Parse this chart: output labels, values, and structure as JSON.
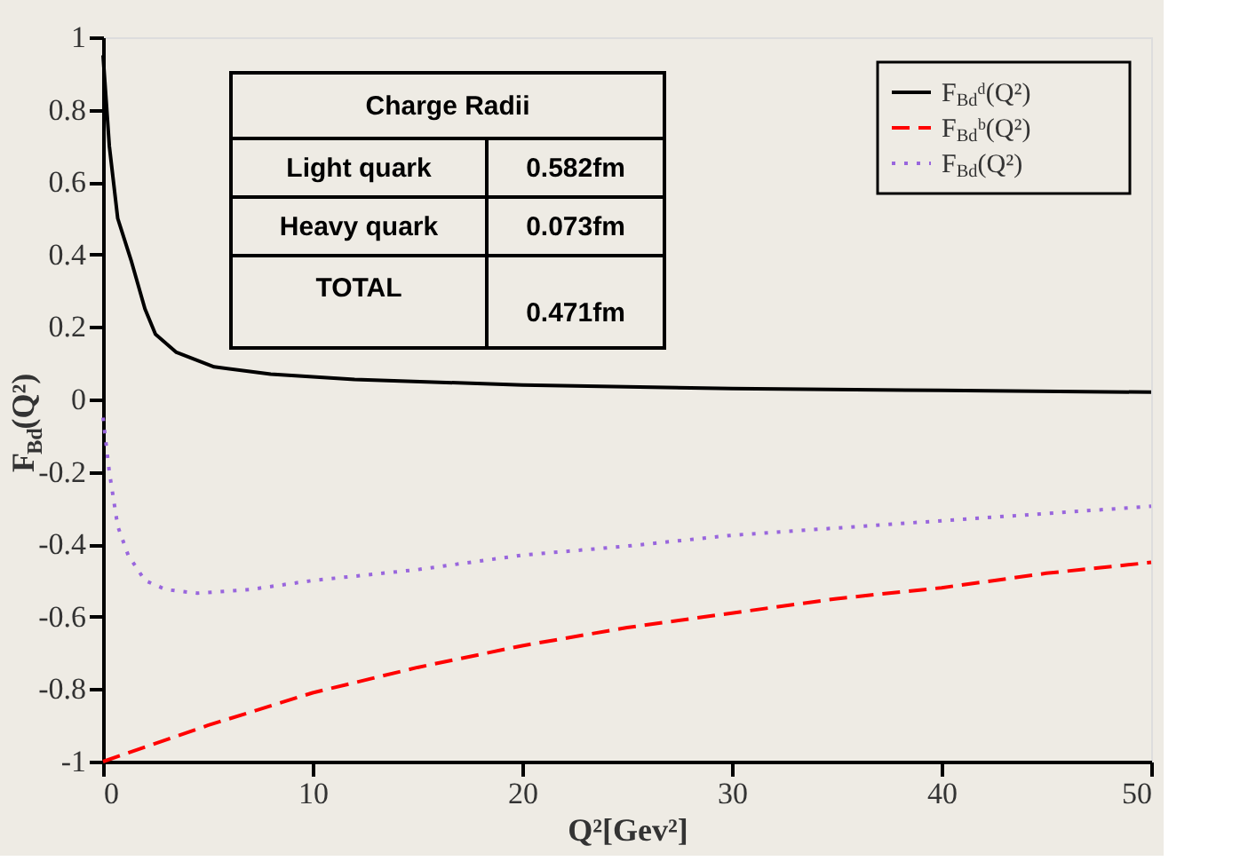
{
  "chart_data": {
    "type": "line",
    "xlabel": "Q²[Gev²]",
    "ylabel": "F$_{Bd}$(Q²)",
    "xlim": [
      0,
      50
    ],
    "ylim": [
      -1,
      1
    ],
    "xticks": [
      0,
      10,
      20,
      30,
      40,
      50
    ],
    "yticks": [
      -1,
      -0.8,
      -0.6,
      -0.4,
      -0.2,
      0,
      0.2,
      0.4,
      0.6,
      0.8,
      1
    ],
    "grid": false,
    "legend": "top right",
    "marker": "none",
    "series": [
      {
        "name": "F$_{Bd}$ᵈ(Q²)",
        "color": "#000000",
        "line_style": "solid",
        "x": [
          0,
          0.3,
          0.7,
          1.36,
          2,
          2.5,
          3.5,
          5.3,
          8,
          12,
          20,
          30,
          40,
          50
        ],
        "values": [
          0.95,
          0.7,
          0.5,
          0.38,
          0.25,
          0.18,
          0.13,
          0.09,
          0.07,
          0.055,
          0.04,
          0.03,
          0.025,
          0.02
        ]
      },
      {
        "name": "F$_{Bd}$ᵇ(Q²)",
        "color": "#ff0000",
        "line_style": "dashed",
        "x": [
          0,
          5,
          10,
          15,
          20,
          25,
          30,
          35,
          40,
          45,
          50
        ],
        "values": [
          -1,
          -0.9,
          -0.81,
          -0.74,
          -0.68,
          -0.63,
          -0.59,
          -0.55,
          -0.52,
          -0.48,
          -0.45
        ]
      },
      {
        "name": "F$_{Bd}$(Q²)",
        "color": "#9966dd",
        "line_style": "dotted",
        "x": [
          0,
          0.3,
          0.7,
          1.2,
          2,
          3,
          4.5,
          7,
          10,
          15,
          20,
          25,
          30,
          35,
          40,
          45,
          50
        ],
        "values": [
          -0.05,
          -0.2,
          -0.35,
          -0.43,
          -0.5,
          -0.525,
          -0.535,
          -0.525,
          -0.5,
          -0.47,
          -0.43,
          -0.405,
          -0.375,
          -0.355,
          -0.335,
          -0.315,
          -0.295
        ]
      }
    ],
    "annotations": [
      "Charge Radii",
      "Light quark",
      "0.582fm",
      "Heavy quark",
      "0.073fm",
      "TOTAL",
      "0.471fm"
    ]
  }
}
